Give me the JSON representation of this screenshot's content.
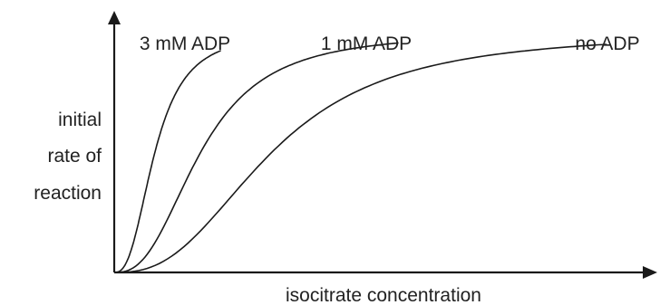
{
  "chart_data": {
    "type": "line",
    "title": "",
    "xlabel": "isocitrate concentration",
    "ylabel_lines": [
      "initial",
      "rate of",
      "reaction"
    ],
    "axis_ticks": "none",
    "grid": false,
    "legend": "inline-labels",
    "series": [
      {
        "name": "3 mM ADP",
        "x_half": 0.08,
        "hill_n": 2.6,
        "vmax": 1.0
      },
      {
        "name": "1 mM ADP",
        "x_half": 0.17,
        "hill_n": 2.6,
        "vmax": 1.0
      },
      {
        "name": "no ADP",
        "x_half": 0.31,
        "hill_n": 2.6,
        "vmax": 1.0
      }
    ]
  }
}
